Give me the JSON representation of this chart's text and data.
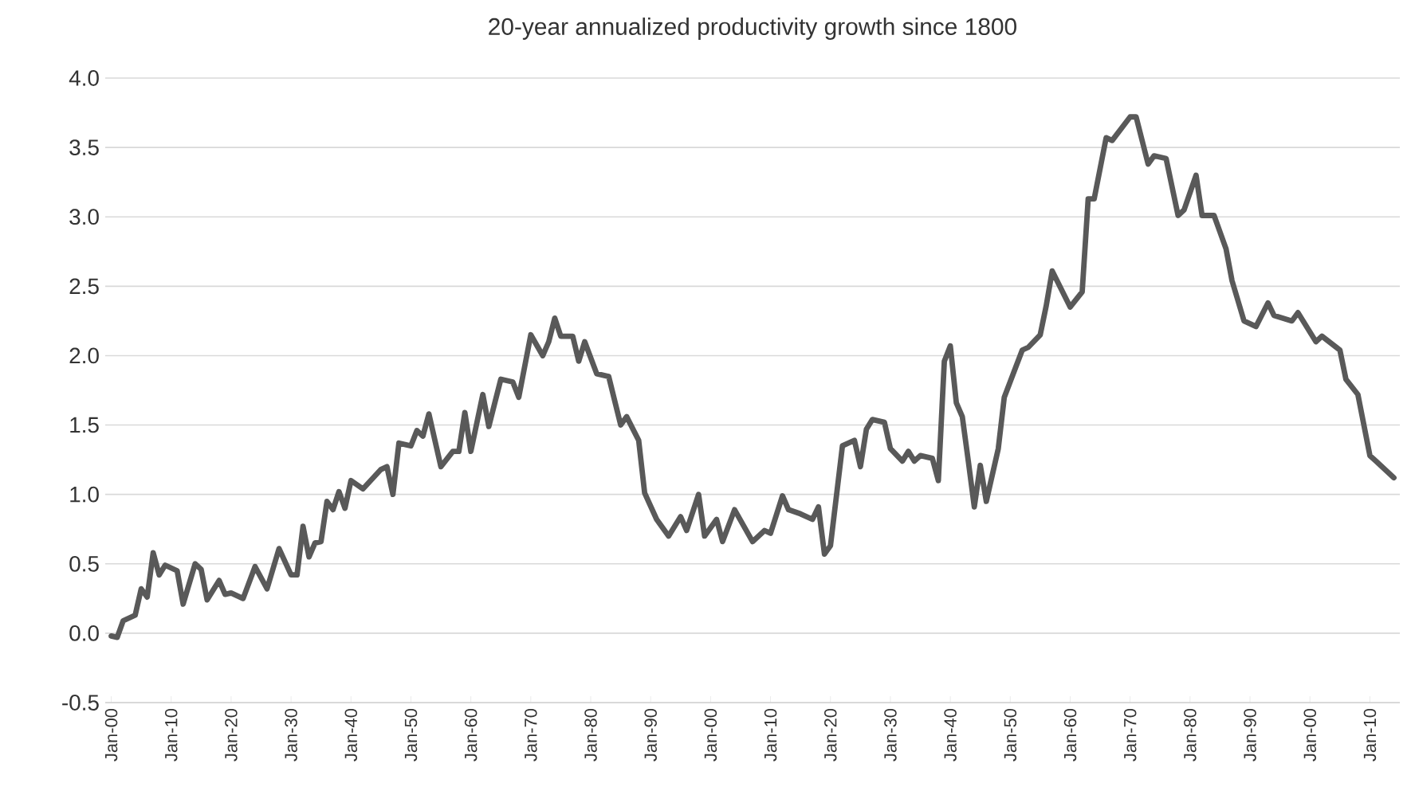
{
  "chart_data": {
    "type": "line",
    "title": "20-year annualized productivity growth since 1800",
    "xlim": [
      "1799",
      "2015"
    ],
    "ylim": [
      -0.5,
      4.0
    ],
    "xticks": [
      {
        "value": "1800-01",
        "label": "Jan-00"
      },
      {
        "value": "1810-01",
        "label": "Jan-10"
      },
      {
        "value": "1820-01",
        "label": "Jan-20"
      },
      {
        "value": "1830-01",
        "label": "Jan-30"
      },
      {
        "value": "1840-01",
        "label": "Jan-40"
      },
      {
        "value": "1850-01",
        "label": "Jan-50"
      },
      {
        "value": "1860-01",
        "label": "Jan-60"
      },
      {
        "value": "1870-01",
        "label": "Jan-70"
      },
      {
        "value": "1880-01",
        "label": "Jan-80"
      },
      {
        "value": "1890-01",
        "label": "Jan-90"
      },
      {
        "value": "1900-01",
        "label": "Jan-00"
      },
      {
        "value": "1910-01",
        "label": "Jan-10"
      },
      {
        "value": "1920-01",
        "label": "Jan-20"
      },
      {
        "value": "1930-01",
        "label": "Jan-30"
      },
      {
        "value": "1940-01",
        "label": "Jan-40"
      },
      {
        "value": "1950-01",
        "label": "Jan-50"
      },
      {
        "value": "1960-01",
        "label": "Jan-60"
      },
      {
        "value": "1970-01",
        "label": "Jan-70"
      },
      {
        "value": "1980-01",
        "label": "Jan-80"
      },
      {
        "value": "1990-01",
        "label": "Jan-90"
      },
      {
        "value": "2000-01",
        "label": "Jan-00"
      },
      {
        "value": "2010-01",
        "label": "Jan-10"
      }
    ],
    "yticks": [
      {
        "value": -0.5,
        "label": "-0.5"
      },
      {
        "value": 0,
        "label": "0.0"
      },
      {
        "value": 0.5,
        "label": "0.5"
      },
      {
        "value": 1,
        "label": "1.0"
      },
      {
        "value": 1.5,
        "label": "1.5"
      },
      {
        "value": 2,
        "label": "2.0"
      },
      {
        "value": 2.5,
        "label": "2.5"
      },
      {
        "value": 3,
        "label": "3.0"
      },
      {
        "value": 3.5,
        "label": "3.5"
      },
      {
        "value": 4,
        "label": "4.0"
      }
    ],
    "grid": "y",
    "legend": false,
    "marker": "none",
    "line_style": "solid",
    "series": [
      {
        "color": "#595959",
        "x": [
          "1800",
          "1801",
          "1802",
          "1804",
          "1805",
          "1806",
          "1807",
          "1808",
          "1809",
          "1811",
          "1812",
          "1814",
          "1815",
          "1816",
          "1818",
          "1819",
          "1820",
          "1822",
          "1824",
          "1826",
          "1828",
          "1830",
          "1831",
          "1832",
          "1833",
          "1834",
          "1835",
          "1836",
          "1837",
          "1838",
          "1839",
          "1840",
          "1842",
          "1845",
          "1846",
          "1847",
          "1848",
          "1850",
          "1851",
          "1852",
          "1853",
          "1855",
          "1857",
          "1858",
          "1859",
          "1860",
          "1862",
          "1863",
          "1865",
          "1867",
          "1868",
          "1870",
          "1872",
          "1873",
          "1874",
          "1875",
          "1877",
          "1878",
          "1879",
          "1881",
          "1883",
          "1885",
          "1886",
          "1888",
          "1889",
          "1891",
          "1893",
          "1895",
          "1896",
          "1898",
          "1899",
          "1901",
          "1902",
          "1904",
          "1907",
          "1909",
          "1910",
          "1912",
          "1913",
          "1915",
          "1917",
          "1918",
          "1919",
          "1920",
          "1922",
          "1924",
          "1925",
          "1926",
          "1927",
          "1929",
          "1930",
          "1932",
          "1933",
          "1934",
          "1935",
          "1937",
          "1938",
          "1939",
          "1940",
          "1941",
          "1942",
          "1943",
          "1944",
          "1945",
          "1946",
          "1948",
          "1949",
          "1952",
          "1953",
          "1955",
          "1956",
          "1957",
          "1960",
          "1962",
          "1963",
          "1964",
          "1966",
          "1967",
          "1970",
          "1971",
          "1973",
          "1974",
          "1976",
          "1978",
          "1979",
          "1981",
          "1982",
          "1984",
          "1986",
          "1987",
          "1989",
          "1991",
          "1993",
          "1994",
          "1997",
          "1998",
          "2001",
          "2002",
          "2005",
          "2006",
          "2008",
          "2010",
          "2011",
          "2014"
        ],
        "values": [
          -0.02,
          -0.03,
          0.09,
          0.13,
          0.32,
          0.26,
          0.58,
          0.42,
          0.49,
          0.45,
          0.21,
          0.5,
          0.46,
          0.24,
          0.38,
          0.28,
          0.29,
          0.25,
          0.48,
          0.32,
          0.61,
          0.42,
          0.42,
          0.77,
          0.55,
          0.65,
          0.66,
          0.95,
          0.89,
          1.02,
          0.9,
          1.1,
          1.04,
          1.18,
          1.2,
          1.0,
          1.37,
          1.35,
          1.46,
          1.42,
          1.58,
          1.2,
          1.31,
          1.31,
          1.59,
          1.31,
          1.72,
          1.49,
          1.83,
          1.81,
          1.7,
          2.15,
          2.0,
          2.1,
          2.27,
          2.14,
          2.14,
          1.96,
          2.1,
          1.87,
          1.85,
          1.5,
          1.56,
          1.39,
          1.01,
          0.82,
          0.7,
          0.84,
          0.74,
          1.0,
          0.7,
          0.82,
          0.66,
          0.89,
          0.66,
          0.74,
          0.72,
          0.99,
          0.89,
          0.86,
          0.82,
          0.91,
          0.57,
          0.63,
          1.35,
          1.39,
          1.2,
          1.47,
          1.54,
          1.52,
          1.33,
          1.24,
          1.31,
          1.24,
          1.28,
          1.26,
          1.1,
          1.96,
          2.07,
          1.66,
          1.56,
          1.24,
          0.91,
          1.21,
          0.95,
          1.33,
          1.7,
          2.04,
          2.06,
          2.15,
          2.36,
          2.61,
          2.35,
          2.46,
          3.13,
          3.13,
          3.57,
          3.55,
          3.72,
          3.72,
          3.38,
          3.44,
          3.42,
          3.01,
          3.05,
          3.3,
          3.01,
          3.01,
          2.77,
          2.54,
          2.25,
          2.21,
          2.38,
          2.29,
          2.25,
          2.31,
          2.1,
          2.14,
          2.04,
          1.83,
          1.72,
          1.28,
          1.24,
          1.12
        ]
      }
    ]
  }
}
